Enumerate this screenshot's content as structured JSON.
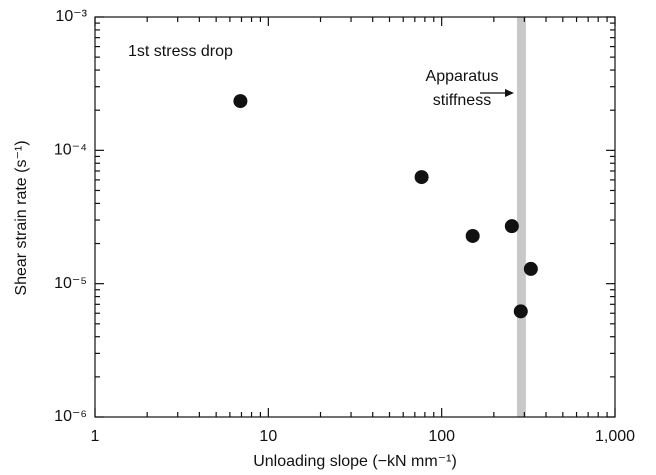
{
  "chart_data": {
    "type": "scatter",
    "xlabel": "Unloading slope (−kN mm⁻¹)",
    "ylabel": "Shear strain rate (s⁻¹)",
    "annotations": [
      "1st stress drop",
      "Apparatus",
      "stiffness"
    ],
    "log_x": true,
    "log_y": true,
    "xlim": [
      1,
      1000
    ],
    "ylim": [
      1e-06,
      0.001
    ],
    "xticks": [
      1,
      10,
      100,
      {
        "value": 1000,
        "label": "1,000"
      }
    ],
    "yticks": [
      {
        "value": 1e-06,
        "label": "10⁻⁶"
      },
      {
        "value": 1e-05,
        "label": "10⁻⁵"
      },
      {
        "value": 0.0001,
        "label": "10⁻⁴"
      },
      {
        "value": 0.001,
        "label": "10⁻³"
      }
    ],
    "band": {
      "x": [
        272,
        306
      ],
      "color": "#c8c8c8"
    },
    "color": "#111111",
    "x": [
      6.9,
      76.6,
      151,
      254,
      327,
      286
    ],
    "values": [
      0.000234,
      6.3e-05,
      2.28e-05,
      2.7e-05,
      1.29e-05,
      6.2e-06
    ]
  }
}
